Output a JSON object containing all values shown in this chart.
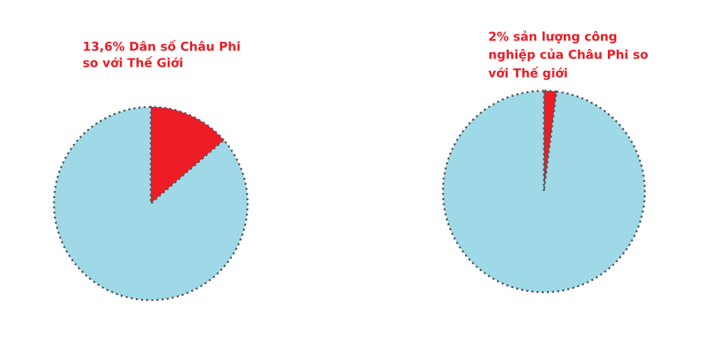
{
  "chart_data": [
    {
      "type": "pie",
      "categories": [
        "13,6% Dân số Châu Phi\nso với Thế Giới",
        null
      ],
      "values": [
        13.6,
        86.4
      ],
      "colors": [
        "#ee1c24",
        "#9fd9e8"
      ]
    },
    {
      "type": "pie",
      "categories": [
        "2% sản lượng công\nnghiệp của Châu Phi so\nvới Thế giới",
        null
      ],
      "values": [
        2,
        98
      ],
      "colors": [
        "#ee1c24",
        "#9fd9e8"
      ]
    }
  ]
}
